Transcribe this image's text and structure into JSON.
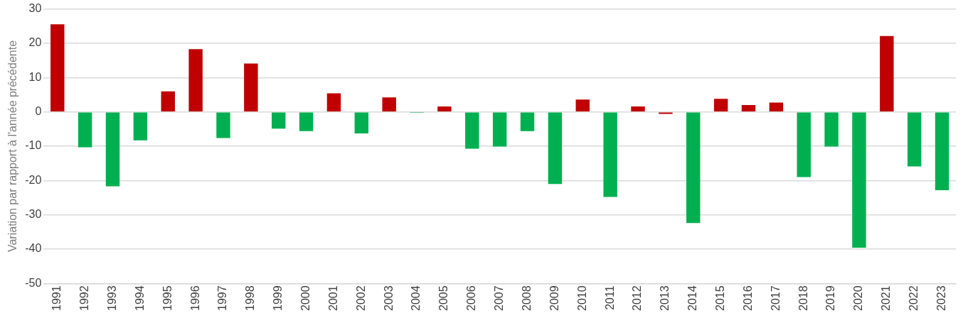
{
  "chart_data": {
    "type": "bar",
    "ylabel": "Variation par rapport à l'année précédente",
    "categories": [
      "1991",
      "1992",
      "1993",
      "1994",
      "1995",
      "1996",
      "1997",
      "1998",
      "1999",
      "2000",
      "2001",
      "2002",
      "2003",
      "2004",
      "2005",
      "2006",
      "2007",
      "2008",
      "2009",
      "2010",
      "2011",
      "2012",
      "2013",
      "2014",
      "2015",
      "2016",
      "2017",
      "2018",
      "2019",
      "2020",
      "2021",
      "2022",
      "2023"
    ],
    "values": [
      25.5,
      -10.3,
      -21.7,
      -8.3,
      6.0,
      18.3,
      -7.6,
      14.1,
      -4.9,
      -5.6,
      5.4,
      -6.3,
      4.2,
      -0.3,
      1.6,
      -10.7,
      -10.1,
      -5.6,
      -21.0,
      3.6,
      -24.8,
      1.6,
      -0.6,
      -32.4,
      3.8,
      2.0,
      2.7,
      -19.0,
      -10.1,
      -39.6,
      22.1,
      -15.9,
      -22.8
    ],
    "colors": [
      "#c00000",
      "#00b050",
      "#00b050",
      "#00b050",
      "#c00000",
      "#c00000",
      "#00b050",
      "#c00000",
      "#00b050",
      "#00b050",
      "#c00000",
      "#00b050",
      "#c00000",
      "#00b050",
      "#c00000",
      "#00b050",
      "#00b050",
      "#00b050",
      "#00b050",
      "#c00000",
      "#00b050",
      "#c00000",
      "#c00000",
      "#00b050",
      "#c00000",
      "#c00000",
      "#c00000",
      "#00b050",
      "#00b050",
      "#00b050",
      "#c00000",
      "#00b050",
      "#00b050"
    ],
    "ylim": [
      -50,
      30
    ],
    "yticks": [
      -50,
      -40,
      -30,
      -20,
      -10,
      0,
      10,
      20,
      30
    ],
    "grid": "y",
    "legend": false
  }
}
